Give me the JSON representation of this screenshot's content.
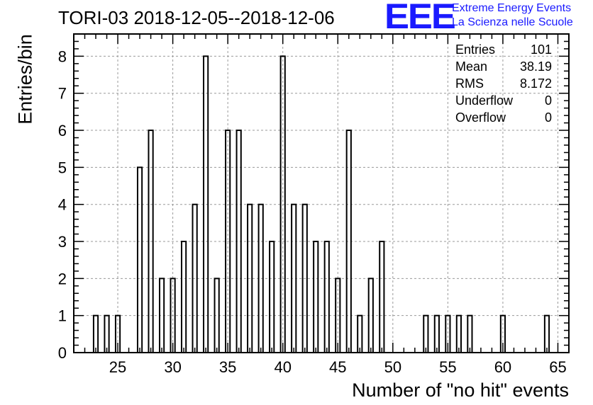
{
  "header": {
    "title": "TORI-03 2018-12-05--2018-12-06",
    "logo_letters": "EEE",
    "logo_line1": "Extreme Energy Events",
    "logo_line2": "La Scienza nelle Scuole"
  },
  "stats": [
    {
      "label": "Entries",
      "value": "101"
    },
    {
      "label": "Mean",
      "value": "38.19"
    },
    {
      "label": "RMS",
      "value": "8.172"
    },
    {
      "label": "Underflow",
      "value": "0"
    },
    {
      "label": "Overflow",
      "value": "0"
    }
  ],
  "chart_data": {
    "type": "bar",
    "title": "TORI-03 2018-12-05--2018-12-06",
    "xlabel": "Number of \"no hit\" events",
    "ylabel": "Entries/bin",
    "xlim": [
      21,
      66
    ],
    "ylim": [
      0,
      8.6
    ],
    "bin_width": 1,
    "x_ticks": [
      25,
      30,
      35,
      40,
      45,
      50,
      55,
      60,
      65
    ],
    "y_ticks": [
      0,
      1,
      2,
      3,
      4,
      5,
      6,
      7,
      8
    ],
    "grid": true,
    "bins": [
      {
        "x": 23,
        "value": 1
      },
      {
        "x": 24,
        "value": 1
      },
      {
        "x": 25,
        "value": 1
      },
      {
        "x": 27,
        "value": 5
      },
      {
        "x": 28,
        "value": 6
      },
      {
        "x": 29,
        "value": 2
      },
      {
        "x": 30,
        "value": 2
      },
      {
        "x": 31,
        "value": 3
      },
      {
        "x": 32,
        "value": 4
      },
      {
        "x": 33,
        "value": 8
      },
      {
        "x": 34,
        "value": 2
      },
      {
        "x": 35,
        "value": 6
      },
      {
        "x": 36,
        "value": 6
      },
      {
        "x": 37,
        "value": 4
      },
      {
        "x": 38,
        "value": 4
      },
      {
        "x": 39,
        "value": 3
      },
      {
        "x": 40,
        "value": 8
      },
      {
        "x": 41,
        "value": 4
      },
      {
        "x": 42,
        "value": 4
      },
      {
        "x": 43,
        "value": 3
      },
      {
        "x": 44,
        "value": 3
      },
      {
        "x": 45,
        "value": 2
      },
      {
        "x": 46,
        "value": 6
      },
      {
        "x": 47,
        "value": 1
      },
      {
        "x": 48,
        "value": 2
      },
      {
        "x": 49,
        "value": 3
      },
      {
        "x": 53,
        "value": 1
      },
      {
        "x": 54,
        "value": 1
      },
      {
        "x": 55,
        "value": 1
      },
      {
        "x": 56,
        "value": 1
      },
      {
        "x": 57,
        "value": 1
      },
      {
        "x": 60,
        "value": 1
      },
      {
        "x": 64,
        "value": 1
      }
    ]
  }
}
